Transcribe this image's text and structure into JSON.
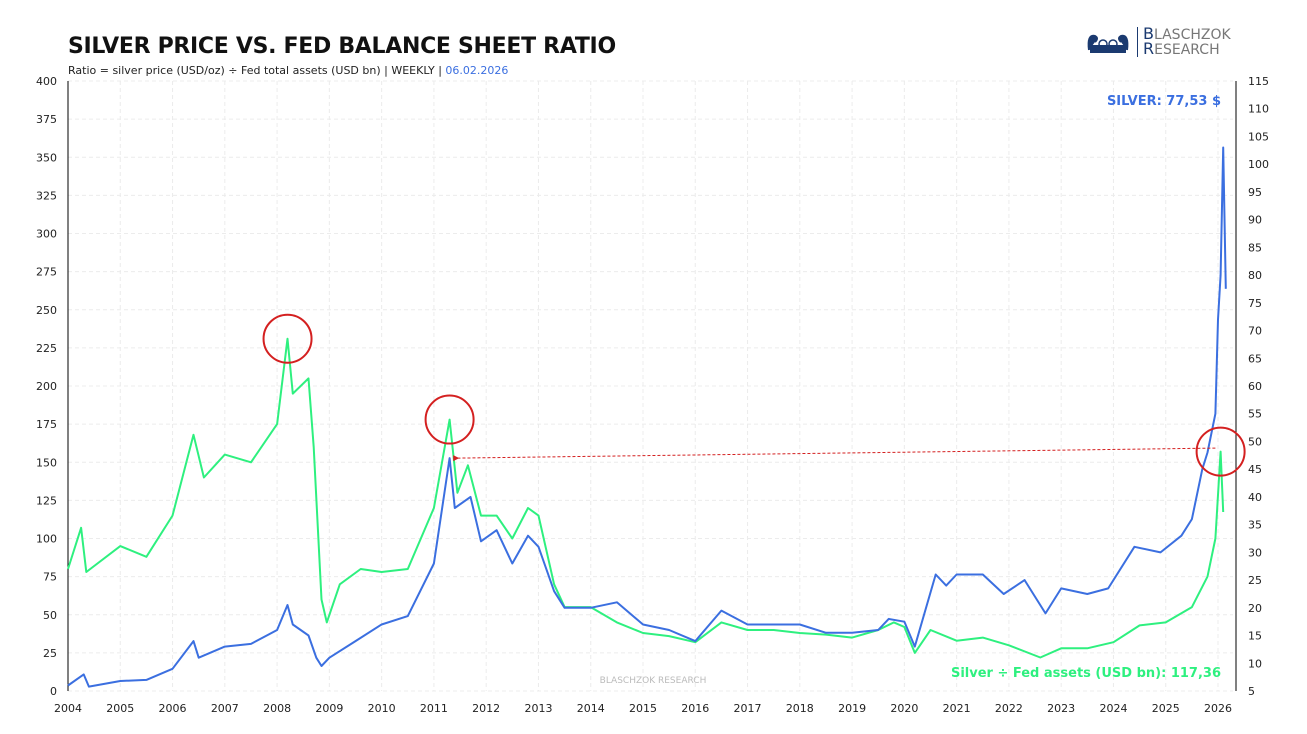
{
  "title": "SILVER PRICE VS. FED BALANCE SHEET RATIO",
  "subtitle": "Ratio = silver price (USD/oz) ÷ Fed total assets (USD bn) | WEEKLY | ",
  "date": "06.02.2026",
  "logo_text": "BLASCHZOK RESEARCH",
  "watermark": "BLASCHZOK RESEARCH",
  "colors": {
    "silver": "#3b6fe0",
    "ratio": "#2ef07f",
    "annotation": "#d42020"
  },
  "chart_data": {
    "type": "line",
    "x_ticks": [
      "2004",
      "2005",
      "2006",
      "2007",
      "2008",
      "2009",
      "2010",
      "2011",
      "2012",
      "2013",
      "2014",
      "2015",
      "2016",
      "2017",
      "2018",
      "2019",
      "2020",
      "2021",
      "2022",
      "2023",
      "2024",
      "2025",
      "2026"
    ],
    "y_left": {
      "range": [
        0,
        400
      ],
      "ticks": [
        0,
        25,
        50,
        75,
        100,
        125,
        150,
        175,
        200,
        225,
        250,
        275,
        300,
        325,
        350,
        375,
        400
      ]
    },
    "y_right": {
      "range": [
        5,
        115
      ],
      "ticks": [
        5,
        10,
        15,
        20,
        25,
        30,
        35,
        40,
        45,
        50,
        55,
        60,
        65,
        70,
        75,
        80,
        85,
        90,
        95,
        100,
        105,
        110,
        115
      ]
    },
    "grid": true,
    "series": [
      {
        "name": "SILVER",
        "label": "SILVER: 77,53 $",
        "axis": "right",
        "x": [
          2004.0,
          2004.3,
          2004.4,
          2005.0,
          2005.5,
          2006.0,
          2006.4,
          2006.5,
          2007.0,
          2007.5,
          2008.0,
          2008.2,
          2008.3,
          2008.6,
          2008.75,
          2008.85,
          2009.0,
          2009.5,
          2010.0,
          2010.5,
          2011.0,
          2011.3,
          2011.4,
          2011.7,
          2011.9,
          2012.2,
          2012.5,
          2012.8,
          2013.0,
          2013.3,
          2013.5,
          2014.0,
          2014.5,
          2015.0,
          2015.5,
          2016.0,
          2016.5,
          2017.0,
          2017.5,
          2018.0,
          2018.5,
          2019.0,
          2019.5,
          2019.7,
          2020.0,
          2020.2,
          2020.6,
          2020.8,
          2021.0,
          2021.5,
          2021.9,
          2022.3,
          2022.7,
          2023.0,
          2023.5,
          2023.9,
          2024.4,
          2024.9,
          2025.3,
          2025.5,
          2025.7,
          2025.8,
          2025.95,
          2026.0,
          2026.05,
          2026.1,
          2026.15
        ],
        "y": [
          6.0,
          8.0,
          5.8,
          6.8,
          7.0,
          9.0,
          14.0,
          11,
          13,
          13.5,
          16,
          20.5,
          17,
          15,
          11,
          9.5,
          11,
          14,
          17,
          18.5,
          28,
          47,
          38,
          40,
          32,
          34,
          28,
          33,
          31,
          23,
          20,
          20,
          21,
          17,
          16,
          14,
          19.5,
          17,
          17,
          17,
          15.5,
          15.5,
          16,
          18,
          17.5,
          13,
          26,
          24,
          26,
          26,
          22.5,
          25,
          19,
          23.5,
          22.5,
          23.5,
          31,
          30,
          33,
          36,
          45,
          48,
          55,
          72,
          80,
          103,
          77.53
        ]
      },
      {
        "name": "Silver ÷ Fed assets (USD bn)",
        "label": "Silver ÷ Fed assets (USD bn): 117,36",
        "axis": "left",
        "x": [
          2004.0,
          2004.25,
          2004.35,
          2005.0,
          2005.5,
          2006.0,
          2006.4,
          2006.6,
          2007.0,
          2007.5,
          2008.0,
          2008.2,
          2008.3,
          2008.6,
          2008.7,
          2008.85,
          2008.95,
          2009.2,
          2009.6,
          2010.0,
          2010.5,
          2011.0,
          2011.3,
          2011.45,
          2011.65,
          2011.9,
          2012.2,
          2012.5,
          2012.8,
          2013.0,
          2013.3,
          2013.5,
          2014.0,
          2014.5,
          2015.0,
          2015.5,
          2016.0,
          2016.5,
          2017.0,
          2017.5,
          2018.0,
          2018.5,
          2019.0,
          2019.5,
          2019.8,
          2020.0,
          2020.2,
          2020.5,
          2021.0,
          2021.5,
          2022.0,
          2022.6,
          2023.0,
          2023.5,
          2024.0,
          2024.5,
          2025.0,
          2025.5,
          2025.8,
          2025.95,
          2026.05,
          2026.1
        ],
        "y": [
          80,
          107,
          78,
          95,
          88,
          115,
          168,
          140,
          155,
          150,
          175,
          231,
          195,
          205,
          160,
          60,
          45,
          70,
          80,
          78,
          80,
          120,
          178,
          130,
          148,
          115,
          115,
          100,
          120,
          115,
          70,
          55,
          55,
          45,
          38,
          36,
          32,
          45,
          40,
          40,
          38,
          37,
          35,
          40,
          45,
          42,
          25,
          40,
          33,
          35,
          30,
          22,
          28,
          28,
          32,
          43,
          45,
          55,
          75,
          100,
          157,
          117.36
        ]
      }
    ],
    "annotations": [
      {
        "type": "circle",
        "x": 2008.2,
        "y": 231
      },
      {
        "type": "circle",
        "x": 2011.3,
        "y": 178
      },
      {
        "type": "circle",
        "x": 2026.05,
        "y": 157
      },
      {
        "type": "dashed-arrow",
        "from": [
          2025.95,
          156
        ],
        "to": [
          2011.35,
          156
        ]
      }
    ]
  }
}
